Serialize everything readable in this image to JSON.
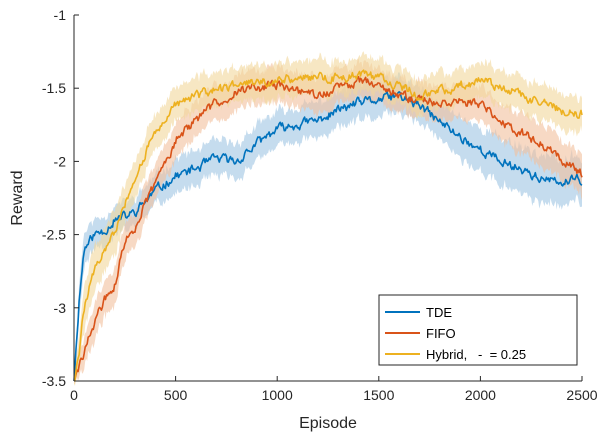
{
  "chart_data": {
    "type": "line",
    "xlabel": "Episode",
    "ylabel": "Reward",
    "xlim": [
      0,
      2500
    ],
    "ylim": [
      -3.5,
      -1
    ],
    "xticks": [
      0,
      500,
      1000,
      1500,
      2000,
      2500
    ],
    "xtick_labels": [
      "0",
      "500",
      "1000",
      "1500",
      "2000",
      "2500"
    ],
    "yticks": [
      -3.5,
      -3,
      -2.5,
      -2,
      -1.5,
      -1
    ],
    "ytick_labels": [
      "-3.5",
      "-3",
      "-2.5",
      "-2",
      "-1.5",
      "-1"
    ],
    "grid": false,
    "legend_position": "bottom-right",
    "series": [
      {
        "name": "TDE",
        "color": "#0072BD",
        "band_color": "#9fc5e3",
        "x": [
          0,
          25,
          50,
          100,
          150,
          200,
          250,
          300,
          400,
          500,
          600,
          700,
          800,
          900,
          1000,
          1100,
          1200,
          1300,
          1400,
          1500,
          1600,
          1700,
          1800,
          1900,
          2000,
          2100,
          2200,
          2300,
          2400,
          2500
        ],
        "y": [
          -3.5,
          -2.95,
          -2.6,
          -2.5,
          -2.47,
          -2.4,
          -2.38,
          -2.35,
          -2.2,
          -2.1,
          -2.05,
          -1.98,
          -2.0,
          -1.88,
          -1.78,
          -1.75,
          -1.72,
          -1.65,
          -1.6,
          -1.58,
          -1.55,
          -1.62,
          -1.73,
          -1.83,
          -1.92,
          -2.0,
          -2.05,
          -2.12,
          -2.15,
          -2.12
        ],
        "band": [
          0.02,
          0.12,
          0.12,
          0.1,
          0.1,
          0.1,
          0.1,
          0.1,
          0.1,
          0.12,
          0.12,
          0.12,
          0.12,
          0.12,
          0.12,
          0.12,
          0.12,
          0.12,
          0.12,
          0.12,
          0.12,
          0.12,
          0.12,
          0.14,
          0.15,
          0.16,
          0.16,
          0.16,
          0.16,
          0.15
        ]
      },
      {
        "name": "FIFO",
        "color": "#D95319",
        "band_color": "#f2c09c",
        "x": [
          0,
          25,
          50,
          100,
          150,
          200,
          250,
          300,
          400,
          500,
          600,
          700,
          800,
          900,
          1000,
          1100,
          1200,
          1300,
          1400,
          1500,
          1600,
          1700,
          1800,
          1900,
          2000,
          2100,
          2200,
          2300,
          2400,
          2500
        ],
        "y": [
          -3.5,
          -3.42,
          -3.3,
          -3.1,
          -2.95,
          -2.85,
          -2.55,
          -2.45,
          -2.15,
          -1.85,
          -1.72,
          -1.6,
          -1.52,
          -1.5,
          -1.48,
          -1.52,
          -1.55,
          -1.5,
          -1.45,
          -1.47,
          -1.55,
          -1.58,
          -1.6,
          -1.58,
          -1.62,
          -1.72,
          -1.8,
          -1.88,
          -1.98,
          -2.08
        ],
        "band": [
          0.02,
          0.08,
          0.1,
          0.12,
          0.12,
          0.12,
          0.12,
          0.12,
          0.12,
          0.12,
          0.12,
          0.12,
          0.12,
          0.12,
          0.12,
          0.12,
          0.12,
          0.12,
          0.12,
          0.12,
          0.12,
          0.12,
          0.12,
          0.12,
          0.12,
          0.12,
          0.14,
          0.14,
          0.14,
          0.14
        ]
      },
      {
        "name": "Hybrid,   -  = 0.25",
        "color": "#EDB120",
        "band_color": "#f2d79b",
        "x": [
          0,
          25,
          50,
          100,
          150,
          200,
          250,
          300,
          400,
          500,
          600,
          700,
          800,
          900,
          1000,
          1100,
          1200,
          1300,
          1400,
          1500,
          1600,
          1700,
          1800,
          1900,
          2000,
          2100,
          2200,
          2300,
          2400,
          2500
        ],
        "y": [
          -3.5,
          -3.3,
          -3.0,
          -2.75,
          -2.6,
          -2.5,
          -2.3,
          -2.1,
          -1.8,
          -1.62,
          -1.55,
          -1.52,
          -1.48,
          -1.46,
          -1.45,
          -1.43,
          -1.42,
          -1.43,
          -1.42,
          -1.42,
          -1.48,
          -1.55,
          -1.52,
          -1.48,
          -1.45,
          -1.48,
          -1.55,
          -1.6,
          -1.65,
          -1.68
        ],
        "band": [
          0.02,
          0.12,
          0.15,
          0.15,
          0.15,
          0.15,
          0.14,
          0.13,
          0.12,
          0.12,
          0.12,
          0.12,
          0.12,
          0.12,
          0.12,
          0.12,
          0.12,
          0.12,
          0.12,
          0.12,
          0.12,
          0.12,
          0.12,
          0.12,
          0.12,
          0.12,
          0.12,
          0.12,
          0.12,
          0.12
        ]
      }
    ]
  }
}
